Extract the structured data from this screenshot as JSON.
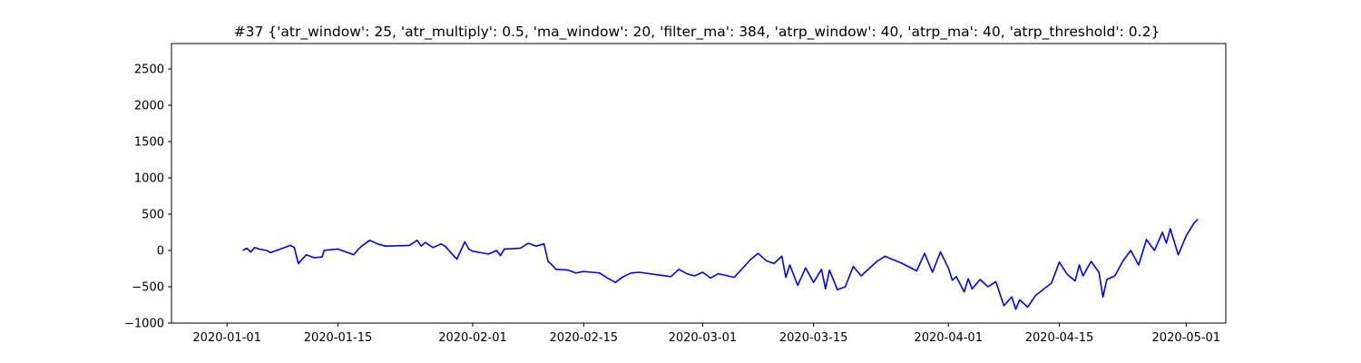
{
  "chart_data": {
    "type": "line",
    "title": "#37 {'atr_window': 25, 'atr_multiply': 0.5, 'ma_window': 20, 'filter_ma': 384, 'atrp_window': 40, 'atrp_ma': 40, 'atrp_threshold': 0.2}",
    "xlabel": "",
    "ylabel": "",
    "x_axis": {
      "type": "date",
      "range": [
        "2019-12-25",
        "2020-05-06"
      ],
      "ticks": [
        "2020-01-01",
        "2020-01-15",
        "2020-02-01",
        "2020-02-15",
        "2020-03-01",
        "2020-03-15",
        "2020-04-01",
        "2020-04-15",
        "2020-05-01"
      ]
    },
    "y_axis": {
      "range": [
        -1000,
        2850
      ],
      "ticks": [
        -1000,
        -500,
        0,
        500,
        1000,
        1500,
        2000,
        2500
      ]
    },
    "grid": false,
    "legend": "none",
    "series": [
      {
        "color": "#0000ff",
        "points": [
          [
            "2020-01-03",
            0
          ],
          [
            "2020-01-03 12:00",
            30
          ],
          [
            "2020-01-04",
            -20
          ],
          [
            "2020-01-04 12:00",
            40
          ],
          [
            "2020-01-05",
            20
          ],
          [
            "2020-01-06",
            0
          ],
          [
            "2020-01-06 12:00",
            -30
          ],
          [
            "2020-01-07",
            -10
          ],
          [
            "2020-01-08",
            30
          ],
          [
            "2020-01-09",
            70
          ],
          [
            "2020-01-09 12:00",
            40
          ],
          [
            "2020-01-10",
            -180
          ],
          [
            "2020-01-10 12:00",
            -120
          ],
          [
            "2020-01-11",
            -60
          ],
          [
            "2020-01-12",
            -100
          ],
          [
            "2020-01-13",
            -90
          ],
          [
            "2020-01-13 06:00",
            0
          ],
          [
            "2020-01-14",
            10
          ],
          [
            "2020-01-15",
            20
          ],
          [
            "2020-01-16",
            -20
          ],
          [
            "2020-01-17",
            -60
          ],
          [
            "2020-01-17 12:00",
            10
          ],
          [
            "2020-01-18",
            60
          ],
          [
            "2020-01-19",
            140
          ],
          [
            "2020-01-20",
            90
          ],
          [
            "2020-01-21",
            60
          ],
          [
            "2020-01-24",
            70
          ],
          [
            "2020-01-25",
            140
          ],
          [
            "2020-01-25 12:00",
            60
          ],
          [
            "2020-01-26",
            110
          ],
          [
            "2020-01-27",
            40
          ],
          [
            "2020-01-28",
            90
          ],
          [
            "2020-01-28 12:00",
            60
          ],
          [
            "2020-01-30",
            -120
          ],
          [
            "2020-01-31",
            120
          ],
          [
            "2020-01-31 12:00",
            20
          ],
          [
            "2020-02-01",
            -10
          ],
          [
            "2020-02-02",
            -30
          ],
          [
            "2020-02-03",
            -50
          ],
          [
            "2020-02-04",
            0
          ],
          [
            "2020-02-04 12:00",
            -70
          ],
          [
            "2020-02-05",
            20
          ],
          [
            "2020-02-07",
            30
          ],
          [
            "2020-02-08",
            100
          ],
          [
            "2020-02-09",
            60
          ],
          [
            "2020-02-10",
            90
          ],
          [
            "2020-02-10 12:00",
            -150
          ],
          [
            "2020-02-11",
            -200
          ],
          [
            "2020-02-11 12:00",
            -260
          ],
          [
            "2020-02-13",
            -270
          ],
          [
            "2020-02-14",
            -310
          ],
          [
            "2020-02-15",
            -290
          ],
          [
            "2020-02-16",
            -300
          ],
          [
            "2020-02-17",
            -310
          ],
          [
            "2020-02-18",
            -380
          ],
          [
            "2020-02-19",
            -440
          ],
          [
            "2020-02-20",
            -360
          ],
          [
            "2020-02-21",
            -310
          ],
          [
            "2020-02-22",
            -300
          ],
          [
            "2020-02-24",
            -330
          ],
          [
            "2020-02-26",
            -360
          ],
          [
            "2020-02-27",
            -260
          ],
          [
            "2020-02-28",
            -320
          ],
          [
            "2020-02-29",
            -350
          ],
          [
            "2020-03-01",
            -300
          ],
          [
            "2020-03-02",
            -380
          ],
          [
            "2020-03-03",
            -320
          ],
          [
            "2020-03-05",
            -370
          ],
          [
            "2020-03-06",
            -250
          ],
          [
            "2020-03-07",
            -130
          ],
          [
            "2020-03-08",
            -40
          ],
          [
            "2020-03-09",
            -140
          ],
          [
            "2020-03-10",
            -180
          ],
          [
            "2020-03-11",
            -80
          ],
          [
            "2020-03-11 12:00",
            -370
          ],
          [
            "2020-03-12",
            -200
          ],
          [
            "2020-03-13",
            -480
          ],
          [
            "2020-03-14",
            -240
          ],
          [
            "2020-03-15",
            -440
          ],
          [
            "2020-03-16",
            -260
          ],
          [
            "2020-03-16 12:00",
            -530
          ],
          [
            "2020-03-17",
            -270
          ],
          [
            "2020-03-18",
            -540
          ],
          [
            "2020-03-19",
            -500
          ],
          [
            "2020-03-20",
            -220
          ],
          [
            "2020-03-21",
            -350
          ],
          [
            "2020-03-22",
            -250
          ],
          [
            "2020-03-23",
            -150
          ],
          [
            "2020-03-24",
            -80
          ],
          [
            "2020-03-26",
            -170
          ],
          [
            "2020-03-28",
            -280
          ],
          [
            "2020-03-29",
            -40
          ],
          [
            "2020-03-30",
            -300
          ],
          [
            "2020-03-31",
            -20
          ],
          [
            "2020-04-01",
            -240
          ],
          [
            "2020-04-01 12:00",
            -410
          ],
          [
            "2020-04-02",
            -360
          ],
          [
            "2020-04-03",
            -570
          ],
          [
            "2020-04-03 12:00",
            -390
          ],
          [
            "2020-04-04",
            -530
          ],
          [
            "2020-04-05",
            -400
          ],
          [
            "2020-04-06",
            -500
          ],
          [
            "2020-04-07",
            -430
          ],
          [
            "2020-04-08",
            -760
          ],
          [
            "2020-04-09",
            -640
          ],
          [
            "2020-04-09 12:00",
            -810
          ],
          [
            "2020-04-10",
            -680
          ],
          [
            "2020-04-11",
            -780
          ],
          [
            "2020-04-12",
            -620
          ],
          [
            "2020-04-14",
            -450
          ],
          [
            "2020-04-15",
            -160
          ],
          [
            "2020-04-16",
            -330
          ],
          [
            "2020-04-17",
            -420
          ],
          [
            "2020-04-17 12:00",
            -200
          ],
          [
            "2020-04-18",
            -350
          ],
          [
            "2020-04-19",
            -150
          ],
          [
            "2020-04-20",
            -300
          ],
          [
            "2020-04-20 12:00",
            -640
          ],
          [
            "2020-04-21",
            -400
          ],
          [
            "2020-04-22",
            -350
          ],
          [
            "2020-04-23",
            -150
          ],
          [
            "2020-04-24",
            0
          ],
          [
            "2020-04-25",
            -200
          ],
          [
            "2020-04-26",
            150
          ],
          [
            "2020-04-27",
            0
          ],
          [
            "2020-04-28",
            250
          ],
          [
            "2020-04-28 12:00",
            100
          ],
          [
            "2020-04-29",
            300
          ],
          [
            "2020-04-30",
            -60
          ],
          [
            "2020-05-01",
            200
          ],
          [
            "2020-05-02",
            380
          ],
          [
            "2020-05-02 12:00",
            430
          ]
        ]
      }
    ]
  }
}
